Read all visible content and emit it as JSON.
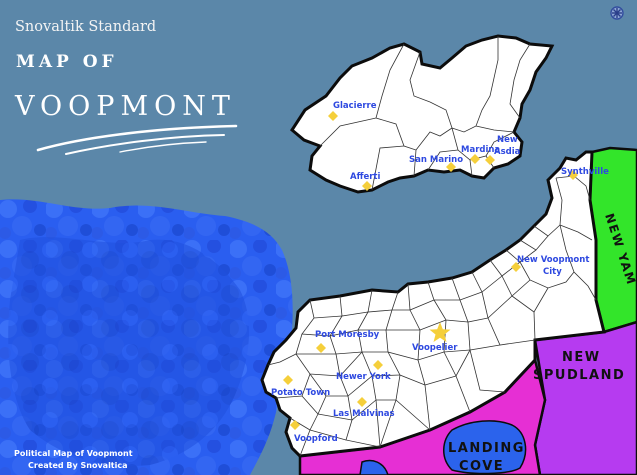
{
  "header": {
    "subtitle": "Snovaltik Standard",
    "title_top": "MAP OF",
    "title_main": "VOOPMONT"
  },
  "credits": {
    "line1": "Political Map of Voopmont",
    "line2": "Created By Snovaltica"
  },
  "regions": {
    "new_yam": "NEW YAM",
    "new_spudland_1": "NEW",
    "new_spudland_2": "SPUDLAND",
    "landing_cove_1": "LANDING",
    "landing_cove_2": "COVE"
  },
  "cities": {
    "glacierre": "Glacierre",
    "afferti": "Afferti",
    "san_marino": "San Marino",
    "mardina": "Mardina",
    "new_asdia_1": "New",
    "new_asdia_2": "Asdia",
    "synthville": "Synthville",
    "new_voopmont_city_1": "New Voopmont",
    "new_voopmont_city_2": "City",
    "port_moresby": "Port Moresby",
    "voopelier": "Voopelier",
    "newer_york": "Newer York",
    "potato_town": "Potato Town",
    "las_malvinas": "Las Malvinas",
    "voopford": "Voopford"
  },
  "colors": {
    "sea": "#5b87a9",
    "land": "#ffffff",
    "ocean_shallow": "#2b63ec",
    "new_yam": "#33e52a",
    "new_spudland": "#b63bf0",
    "landing_cove": "#e62fd4",
    "city_label": "#2e49e0",
    "city_marker": "#f5cf3b"
  },
  "icons": {
    "capital": "star-icon",
    "city": "diamond-icon",
    "emblem": "snowflake-icon"
  }
}
